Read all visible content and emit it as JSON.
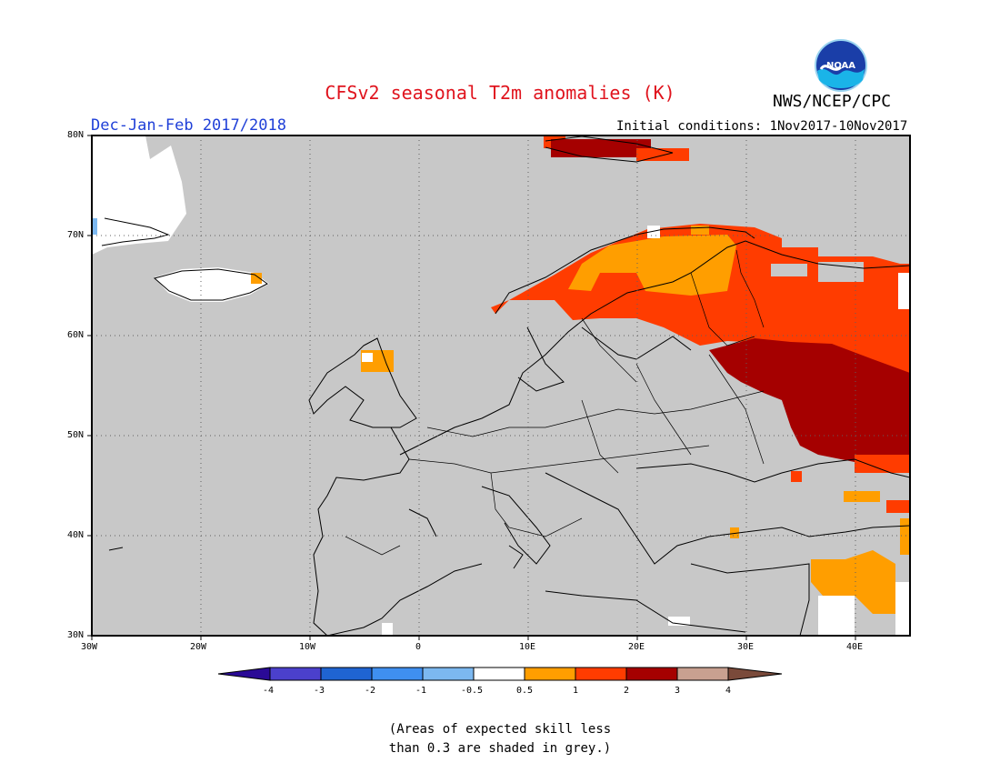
{
  "header": {
    "title": "CFSv2 seasonal T2m anomalies (K)",
    "season": "Dec-Jan-Feb 2017/2018",
    "initial_conditions": "Initial conditions: 1Nov2017-10Nov2017",
    "agency": "NWS/NCEP/CPC",
    "logo_text": "NOAA"
  },
  "map": {
    "lon_range": [
      -30,
      45
    ],
    "lat_range": [
      30,
      80
    ],
    "lat_labels": [
      "80N",
      "70N",
      "60N",
      "50N",
      "40N",
      "30N"
    ],
    "lon_labels": [
      "30W",
      "20W",
      "10W",
      "0",
      "10E",
      "20E",
      "30E",
      "40E"
    ],
    "mask_color": "#c8c8c8",
    "regions": [
      {
        "name": "svalbard-warm-anomaly",
        "level": "2 to 3 K"
      },
      {
        "name": "scandinavia-warm-anomaly",
        "level": "0.5 to 2 K"
      },
      {
        "name": "western-russia-strong-anomaly",
        "level": "2 to 3 K"
      },
      {
        "name": "middle-east-warm-anomaly",
        "level": "0.5 to 1 K"
      }
    ]
  },
  "legend": {
    "labels": [
      "-4",
      "-3",
      "-2",
      "-1",
      "-0.5",
      "0.5",
      "1",
      "2",
      "3",
      "4"
    ],
    "colors": [
      "#2a0a96",
      "#4b40cc",
      "#1f64d2",
      "#3f8ff0",
      "#7cb8f0",
      "#ffffff",
      "#ff9e00",
      "#ff3c00",
      "#a50000",
      "#c8a090",
      "#7a4a3a"
    ]
  },
  "note": "(Areas of expected skill less\nthan 0.3 are shaded in grey.)"
}
